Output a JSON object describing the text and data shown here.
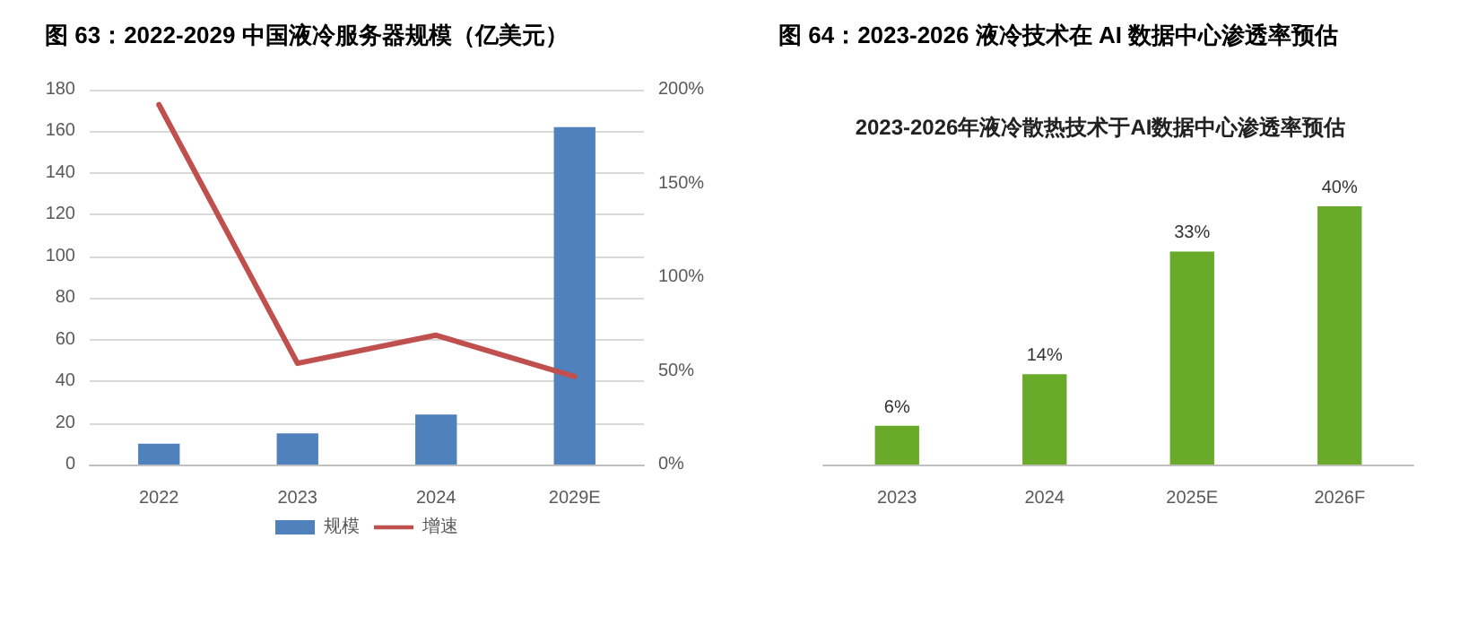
{
  "chart_data": [
    {
      "type": "bar",
      "title": "图 63：2022-2029 中国液冷服务器规模（亿美元）",
      "categories": [
        "2022",
        "2023",
        "2024",
        "2029E"
      ],
      "series": [
        {
          "name": "规模",
          "color": "#4f81bd",
          "values": [
            10,
            15,
            24,
            162
          ]
        },
        {
          "name": "增速",
          "type": "line",
          "axis": "y2",
          "color": "#c0504d",
          "values": [
            192,
            54,
            69,
            47
          ]
        }
      ],
      "ylim": [
        0,
        180
      ],
      "yticks": [
        0,
        20,
        40,
        60,
        80,
        100,
        120,
        140,
        160,
        180
      ],
      "y2lim": [
        0,
        200
      ],
      "y2ticks": [
        {
          "value": 0,
          "label": "0%"
        },
        {
          "value": 50,
          "label": "50%"
        },
        {
          "value": 100,
          "label": "100%"
        },
        {
          "value": 150,
          "label": "150%"
        },
        {
          "value": 200,
          "label": "200%"
        }
      ],
      "grid": "y",
      "legend": "bottom",
      "marker": "none",
      "line_style": "solid"
    },
    {
      "type": "bar",
      "title": "图 64：2023-2026 液冷技术在 AI 数据中心渗透率预估",
      "subtitle": "2023-2026年液冷散热技术于AI数据中心渗透率预估",
      "categories": [
        "2023",
        "2024",
        "2025E",
        "2026F"
      ],
      "values": [
        6,
        14,
        33,
        40
      ],
      "color": "#6aaa2a",
      "value_labels": [
        "6%",
        "14%",
        "33%",
        "40%"
      ],
      "tick_labels": "x",
      "grid": false
    }
  ]
}
